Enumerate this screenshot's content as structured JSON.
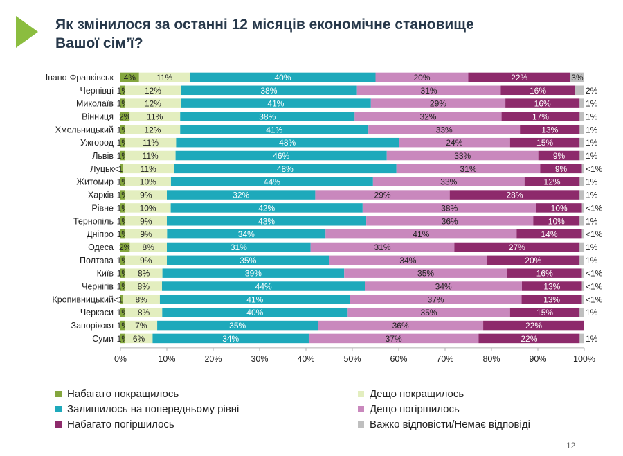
{
  "page": {
    "title": "Як змінилося за останні 12 місяців економічне становище\nВашої сім’ї?",
    "page_number": "12",
    "logo": "triangle-logo-icon"
  },
  "colors": {
    "much_better": "#84a63e",
    "somewhat_better": "#e3eebf",
    "same": "#1ea9bb",
    "somewhat_worse": "#c988bd",
    "much_worse": "#8d2a6b",
    "no_answer": "#bfbfbf",
    "logo": "#8bbd3f",
    "title": "#27384a"
  },
  "chart_data": {
    "type": "bar",
    "orientation": "horizontal",
    "stacked": true,
    "xlim": [
      0,
      100
    ],
    "x_ticks": [
      "0%",
      "10%",
      "20%",
      "30%",
      "40%",
      "50%",
      "60%",
      "70%",
      "80%",
      "90%",
      "100%"
    ],
    "grid": false,
    "legend_position": "bottom",
    "categories": [
      "Івано-Франківськ",
      "Чернівці",
      "Миколаїв",
      "Вінниця",
      "Хмельницький",
      "Ужгород",
      "Львів",
      "Луцьк",
      "Житомир",
      "Харків",
      "Рівне",
      "Тернопіль",
      "Дніпро",
      "Одеса",
      "Полтава",
      "Київ",
      "Чернігів",
      "Кропивницький",
      "Черкаси",
      "Запоріжжя",
      "Суми"
    ],
    "series": [
      {
        "name": "Набагато покращилось",
        "color_key": "much_better",
        "values": [
          4,
          1,
          1,
          2,
          1,
          1,
          1,
          0.5,
          1,
          1,
          1,
          1,
          1,
          2,
          1,
          1,
          1,
          0.5,
          1,
          1,
          1
        ],
        "labels": [
          "4%",
          "1%",
          "1%",
          "2%",
          "1%",
          "1%",
          "1%",
          "<1%",
          "1%",
          "1%",
          "1%",
          "1%",
          "1%",
          "2%",
          "1%",
          "1%",
          "1%",
          "<1%",
          "1%",
          "1%",
          "1%"
        ]
      },
      {
        "name": "Дещо покращилось",
        "color_key": "somewhat_better",
        "values": [
          11,
          12,
          12,
          11,
          12,
          11,
          11,
          11,
          10,
          9,
          10,
          9,
          9,
          8,
          9,
          8,
          8,
          8,
          8,
          7,
          6
        ],
        "labels": [
          "11%",
          "12%",
          "12%",
          "11%",
          "12%",
          "11%",
          "11%",
          "11%",
          "10%",
          "9%",
          "10%",
          "9%",
          "9%",
          "8%",
          "9%",
          "8%",
          "8%",
          "8%",
          "8%",
          "7%",
          "6%"
        ]
      },
      {
        "name": "Залишилось на попередньому рівні",
        "color_key": "same",
        "values": [
          40,
          38,
          41,
          38,
          41,
          48,
          46,
          48,
          44,
          32,
          42,
          43,
          34,
          31,
          35,
          39,
          44,
          41,
          40,
          35,
          34
        ],
        "labels": [
          "40%",
          "38%",
          "41%",
          "38%",
          "41%",
          "48%",
          "46%",
          "48%",
          "44%",
          "32%",
          "42%",
          "43%",
          "34%",
          "31%",
          "35%",
          "39%",
          "44%",
          "41%",
          "40%",
          "35%",
          "34%"
        ]
      },
      {
        "name": "Дещо погіршилось",
        "color_key": "somewhat_worse",
        "values": [
          20,
          31,
          29,
          32,
          33,
          24,
          33,
          31,
          33,
          29,
          38,
          36,
          41,
          31,
          34,
          35,
          34,
          37,
          35,
          36,
          37
        ],
        "labels": [
          "20%",
          "31%",
          "29%",
          "32%",
          "33%",
          "24%",
          "33%",
          "31%",
          "33%",
          "29%",
          "38%",
          "36%",
          "41%",
          "31%",
          "34%",
          "35%",
          "34%",
          "37%",
          "35%",
          "36%",
          "37%"
        ]
      },
      {
        "name": "Набагато погіршилось",
        "color_key": "much_worse",
        "values": [
          22,
          16,
          16,
          17,
          13,
          15,
          9,
          9,
          12,
          28,
          10,
          10,
          14,
          27,
          20,
          16,
          13,
          13,
          15,
          22,
          22
        ],
        "labels": [
          "22%",
          "16%",
          "16%",
          "17%",
          "13%",
          "15%",
          "9%",
          "9%",
          "12%",
          "28%",
          "10%",
          "10%",
          "14%",
          "27%",
          "20%",
          "16%",
          "13%",
          "13%",
          "15%",
          "22%",
          "22%"
        ]
      },
      {
        "name": "Важко відповісти/Немає відповіді",
        "color_key": "no_answer",
        "values": [
          3,
          2,
          1,
          1,
          1,
          1,
          1,
          0.5,
          1,
          1,
          0.5,
          1,
          0.5,
          1,
          1,
          0.5,
          0.5,
          0.5,
          1,
          0,
          1
        ],
        "labels": [
          "3%",
          "2%",
          "1%",
          "1%",
          "1%",
          "1%",
          "1%",
          "<1%",
          "1%",
          "1%",
          "<1%",
          "1%",
          "<1%",
          "1%",
          "1%",
          "<1%",
          "<1%",
          "<1%",
          "1%",
          "",
          "1%"
        ]
      }
    ]
  }
}
